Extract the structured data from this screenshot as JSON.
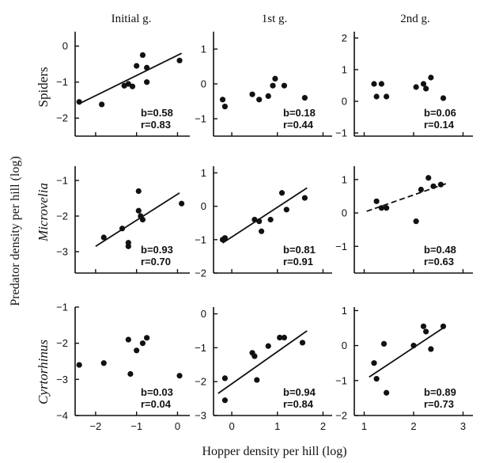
{
  "figure": {
    "xlabel": "Hopper density per hill (log)",
    "ylabel": "Predator density per hill (log)"
  },
  "chart_data": [
    {
      "type": "scatter",
      "row": "Spiders",
      "column": "Initial g.",
      "xlim": [
        -2.5,
        0.3
      ],
      "ylim": [
        -2.5,
        0.4
      ],
      "yticks": [
        0,
        -1,
        -2
      ],
      "points": [
        [
          -2.4,
          -1.55
        ],
        [
          -1.85,
          -1.62
        ],
        [
          -1.3,
          -1.1
        ],
        [
          -1.2,
          -1.05
        ],
        [
          -1.1,
          -1.12
        ],
        [
          -1.0,
          -0.55
        ],
        [
          -0.85,
          -0.25
        ],
        [
          -0.75,
          -0.6
        ],
        [
          -0.75,
          -1.0
        ],
        [
          0.05,
          -0.4
        ]
      ],
      "fit": {
        "x": [
          -2.4,
          0.1
        ],
        "y": [
          -1.6,
          -0.2
        ],
        "style": "solid"
      },
      "stats": {
        "b": "b=0.58",
        "r": "r=0.83"
      }
    },
    {
      "type": "scatter",
      "row": "Spiders",
      "column": "1st g.",
      "xlim": [
        -0.4,
        2.2
      ],
      "ylim": [
        -1.5,
        1.5
      ],
      "yticks": [
        1,
        0,
        -1
      ],
      "points": [
        [
          -0.2,
          -0.45
        ],
        [
          -0.15,
          -0.65
        ],
        [
          0.45,
          -0.3
        ],
        [
          0.6,
          -0.45
        ],
        [
          0.8,
          -0.35
        ],
        [
          0.95,
          0.15
        ],
        [
          0.9,
          -0.05
        ],
        [
          1.15,
          -0.05
        ],
        [
          1.6,
          -0.4
        ]
      ],
      "fit": null,
      "stats": {
        "b": "b=0.18",
        "r": "r=0.44"
      }
    },
    {
      "type": "scatter",
      "row": "Spiders",
      "column": "2nd g.",
      "xlim": [
        0.8,
        3.2
      ],
      "ylim": [
        -1.1,
        2.2
      ],
      "yticks": [
        2,
        1,
        0,
        -1
      ],
      "points": [
        [
          1.2,
          0.55
        ],
        [
          1.35,
          0.55
        ],
        [
          1.25,
          0.15
        ],
        [
          1.45,
          0.15
        ],
        [
          2.05,
          0.45
        ],
        [
          2.2,
          0.55
        ],
        [
          2.25,
          0.4
        ],
        [
          2.35,
          0.75
        ],
        [
          2.6,
          0.1
        ]
      ],
      "fit": null,
      "stats": {
        "b": "b=0.06",
        "r": "r=0.14"
      }
    },
    {
      "type": "scatter",
      "row": "Microvelia",
      "column": "Initial g.",
      "xlim": [
        -2.5,
        0.3
      ],
      "ylim": [
        -3.6,
        -0.6
      ],
      "yticks": [
        -1,
        -2,
        -3
      ],
      "points": [
        [
          -1.8,
          -2.6
        ],
        [
          -1.35,
          -2.35
        ],
        [
          -1.2,
          -2.75
        ],
        [
          -1.2,
          -2.85
        ],
        [
          -0.95,
          -1.3
        ],
        [
          -0.95,
          -1.85
        ],
        [
          -0.9,
          -2.0
        ],
        [
          -0.85,
          -2.1
        ],
        [
          0.1,
          -1.65
        ]
      ],
      "fit": {
        "x": [
          -2.0,
          0.05
        ],
        "y": [
          -2.85,
          -1.35
        ],
        "style": "solid"
      },
      "stats": {
        "b": "b=0.93",
        "r": "r=0.70"
      }
    },
    {
      "type": "scatter",
      "row": "Microvelia",
      "column": "1st g.",
      "xlim": [
        -0.4,
        2.2
      ],
      "ylim": [
        -2.0,
        1.2
      ],
      "yticks": [
        1,
        0,
        -1,
        -2
      ],
      "points": [
        [
          -0.2,
          -1.0
        ],
        [
          -0.15,
          -0.95
        ],
        [
          0.5,
          -0.4
        ],
        [
          0.6,
          -0.45
        ],
        [
          0.65,
          -0.75
        ],
        [
          0.85,
          -0.4
        ],
        [
          1.1,
          0.4
        ],
        [
          1.2,
          -0.1
        ],
        [
          1.6,
          0.25
        ]
      ],
      "fit": {
        "x": [
          -0.2,
          1.65
        ],
        "y": [
          -1.1,
          0.55
        ],
        "style": "solid"
      },
      "stats": {
        "b": "b=0.81",
        "r": "r=0.91"
      }
    },
    {
      "type": "scatter",
      "row": "Microvelia",
      "column": "2nd g.",
      "xlim": [
        0.8,
        3.2
      ],
      "ylim": [
        -1.8,
        1.4
      ],
      "yticks": [
        1,
        0,
        -1
      ],
      "points": [
        [
          1.25,
          0.35
        ],
        [
          1.35,
          0.15
        ],
        [
          1.45,
          0.15
        ],
        [
          2.05,
          -0.25
        ],
        [
          2.15,
          0.7
        ],
        [
          2.3,
          1.05
        ],
        [
          2.4,
          0.8
        ],
        [
          2.55,
          0.85
        ]
      ],
      "fit": {
        "x": [
          1.05,
          2.7
        ],
        "y": [
          0.05,
          0.9
        ],
        "style": "dashed"
      },
      "stats": {
        "b": "b=0.48",
        "r": "r=0.63"
      }
    },
    {
      "type": "scatter",
      "row": "Cyrtorhinus",
      "column": "Initial g.",
      "xlim": [
        -2.5,
        0.3
      ],
      "ylim": [
        -4.0,
        -1.0
      ],
      "yticks": [
        -1,
        -2,
        -3,
        -4
      ],
      "points": [
        [
          -2.4,
          -2.6
        ],
        [
          -1.8,
          -2.55
        ],
        [
          -1.2,
          -1.9
        ],
        [
          -1.15,
          -2.85
        ],
        [
          -1.0,
          -2.2
        ],
        [
          -0.85,
          -2.0
        ],
        [
          -0.75,
          -1.85
        ],
        [
          0.05,
          -2.9
        ]
      ],
      "fit": null,
      "stats": {
        "b": "b=0.03",
        "r": "r=0.04"
      }
    },
    {
      "type": "scatter",
      "row": "Cyrtorhinus",
      "column": "1st g.",
      "xlim": [
        -0.4,
        2.2
      ],
      "ylim": [
        -3.0,
        0.2
      ],
      "yticks": [
        0,
        -1,
        -2,
        -3
      ],
      "points": [
        [
          -0.15,
          -1.9
        ],
        [
          -0.15,
          -2.55
        ],
        [
          0.45,
          -1.15
        ],
        [
          0.5,
          -1.25
        ],
        [
          0.55,
          -1.95
        ],
        [
          0.8,
          -0.95
        ],
        [
          1.05,
          -0.7
        ],
        [
          1.15,
          -0.7
        ],
        [
          1.55,
          -0.85
        ]
      ],
      "fit": {
        "x": [
          -0.3,
          1.65
        ],
        "y": [
          -2.35,
          -0.5
        ],
        "style": "solid"
      },
      "stats": {
        "b": "b=0.94",
        "r": "r=0.84"
      }
    },
    {
      "type": "scatter",
      "row": "Cyrtorhinus",
      "column": "2nd g.",
      "xlim": [
        0.8,
        3.2
      ],
      "ylim": [
        -2.0,
        1.1
      ],
      "yticks": [
        1,
        0,
        -1,
        -2
      ],
      "xticks": [
        1,
        2,
        3
      ],
      "points": [
        [
          1.2,
          -0.5
        ],
        [
          1.25,
          -0.95
        ],
        [
          1.4,
          0.05
        ],
        [
          1.45,
          -1.35
        ],
        [
          2.0,
          0.0
        ],
        [
          2.2,
          0.55
        ],
        [
          2.25,
          0.4
        ],
        [
          2.35,
          -0.1
        ],
        [
          2.6,
          0.55
        ]
      ],
      "fit": {
        "x": [
          1.1,
          2.65
        ],
        "y": [
          -0.9,
          0.55
        ],
        "style": "solid"
      },
      "stats": {
        "b": "b=0.89",
        "r": "r=0.73"
      }
    }
  ],
  "x_axes": [
    {
      "ticks": [
        -2,
        -1,
        0
      ]
    },
    {
      "ticks": [
        0,
        1,
        2
      ]
    },
    {
      "ticks": [
        1,
        2,
        3
      ]
    }
  ]
}
